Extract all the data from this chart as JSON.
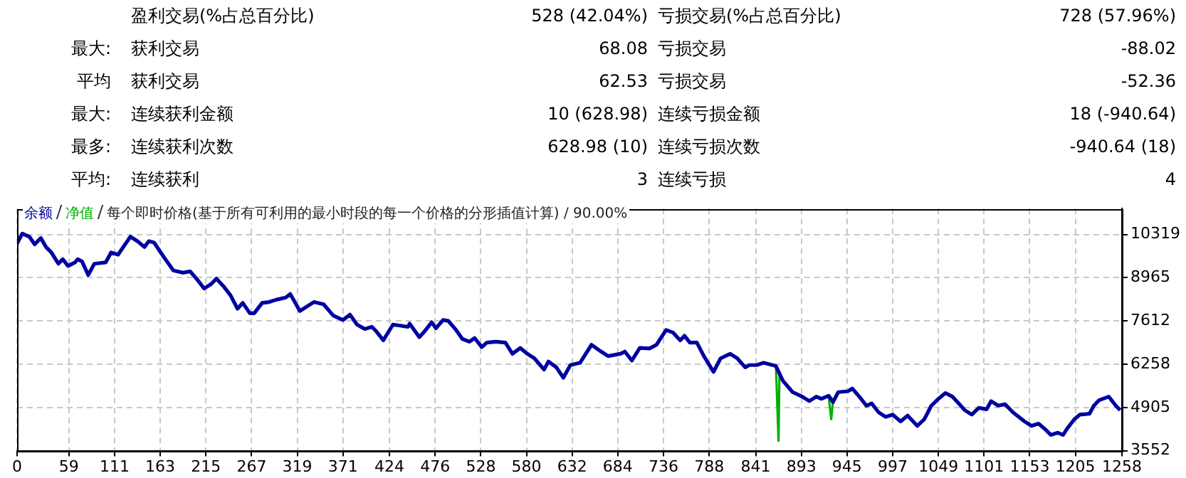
{
  "chart_data": {
    "type": "line",
    "title": "每个即时价格(基于所有可利用的最小时段的每一个价格的分形插值计算) / 90.00%",
    "annotations": [
      "盈利交易(%占总百分比)",
      "528 (42.04%)",
      "亏损交易(%占总百分比)",
      "728 (57.96%)",
      "最大:",
      "获利交易",
      "68.08",
      "亏损交易",
      "-88.02",
      "平均",
      "获利交易",
      "62.53",
      "亏损交易",
      "-52.36",
      "最大:",
      "连续获利金额",
      "10 (628.98)",
      "连续亏损金额",
      "18 (-940.64)",
      "最多:",
      "连续获利次数",
      "628.98 (10)",
      "连续亏损次数",
      "-940.64 (18)",
      "平均:",
      "连续获利",
      "3",
      "连续亏损",
      "4"
    ],
    "xlim": [
      0,
      1258
    ],
    "xticks": [
      0,
      59,
      111,
      163,
      215,
      267,
      319,
      371,
      424,
      476,
      528,
      580,
      632,
      684,
      736,
      788,
      841,
      893,
      945,
      997,
      1049,
      1101,
      1153,
      1205,
      1258
    ],
    "ylim": [
      3552,
      11130
    ],
    "yticks": [
      3552,
      4905,
      6258,
      7612,
      8965,
      10319
    ],
    "grid": true,
    "legend": "top left",
    "marker": "none",
    "line_style": "solid",
    "series": [
      {
        "name": "余额",
        "color": "#0000a0",
        "x": [
          0,
          6,
          14,
          20,
          27,
          33,
          39,
          47,
          52,
          58,
          66,
          69,
          74,
          81,
          88,
          101,
          107,
          115,
          129,
          137,
          145,
          150,
          156,
          167,
          178,
          189,
          197,
          205,
          213,
          221,
          227,
          235,
          243,
          251,
          257,
          265,
          270,
          279,
          287,
          295,
          306,
          311,
          322,
          330,
          338,
          349,
          360,
          371,
          379,
          387,
          396,
          404,
          409,
          417,
          428,
          445,
          447,
          458,
          464,
          472,
          477,
          485,
          491,
          499,
          507,
          515,
          521,
          529,
          535,
          545,
          556,
          564,
          573,
          581,
          589,
          600,
          605,
          614,
          622,
          630,
          641,
          654,
          665,
          673,
          687,
          692,
          700,
          709,
          720,
          728,
          739,
          747,
          755,
          760,
          766,
          774,
          782,
          793,
          801,
          812,
          820,
          829,
          834,
          842,
          850,
          864,
          872,
          883,
          894,
          902,
          910,
          916,
          924,
          929,
          935,
          946,
          951,
          959,
          967,
          973,
          981,
          989,
          997,
          1006,
          1014,
          1025,
          1033,
          1041,
          1049,
          1057,
          1065,
          1079,
          1087,
          1095,
          1104,
          1109,
          1117,
          1125,
          1134,
          1147,
          1155,
          1163,
          1172,
          1177,
          1185,
          1191,
          1196,
          1204,
          1210,
          1221,
          1226,
          1232,
          1243,
          1251,
          1256
        ],
        "values": [
          10038,
          10348,
          10249,
          10010,
          10207,
          9925,
          9756,
          9404,
          9545,
          9333,
          9446,
          9545,
          9474,
          9051,
          9404,
          9446,
          9756,
          9686,
          10249,
          10109,
          9925,
          10109,
          10066,
          9615,
          9192,
          9122,
          9164,
          8910,
          8628,
          8769,
          8938,
          8699,
          8416,
          7994,
          8177,
          7853,
          7853,
          8177,
          8205,
          8276,
          8346,
          8459,
          7923,
          8064,
          8205,
          8134,
          7782,
          7641,
          7810,
          7500,
          7359,
          7429,
          7288,
          7007,
          7500,
          7429,
          7528,
          7105,
          7288,
          7570,
          7387,
          7641,
          7613,
          7359,
          7049,
          6964,
          7077,
          6795,
          6936,
          6964,
          6936,
          6584,
          6767,
          6584,
          6443,
          6090,
          6344,
          6161,
          5836,
          6231,
          6302,
          6866,
          6654,
          6513,
          6584,
          6654,
          6372,
          6767,
          6753,
          6866,
          7331,
          7246,
          7007,
          7148,
          6936,
          6936,
          6513,
          6019,
          6443,
          6584,
          6443,
          6161,
          6231,
          6231,
          6302,
          6203,
          5738,
          5385,
          5244,
          5103,
          5244,
          5174,
          5272,
          5075,
          5385,
          5413,
          5498,
          5244,
          4962,
          5033,
          4751,
          4610,
          4680,
          4469,
          4652,
          4328,
          4539,
          4962,
          5174,
          5357,
          5244,
          4821,
          4680,
          4892,
          4849,
          5103,
          4962,
          5004,
          4751,
          4469,
          4328,
          4398,
          4187,
          4045,
          4116,
          4045,
          4257,
          4539,
          4680,
          4708,
          4962,
          5131,
          5244,
          4962,
          4821
        ]
      },
      {
        "name": "净值",
        "color": "#00b000",
        "x": [
          864,
          867,
          868,
          872,
          900,
          924,
          927,
          929
        ],
        "values": [
          6200,
          3860,
          5900,
          5740,
          null,
          5270,
          4540,
          5080
        ]
      }
    ]
  }
}
